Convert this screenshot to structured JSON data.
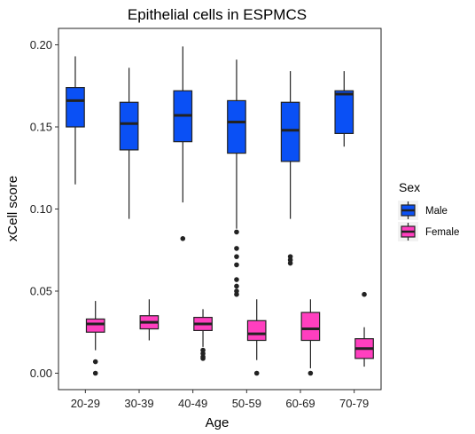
{
  "chart_data": {
    "type": "boxplot",
    "title": "Epithelial cells in ESPMCS",
    "xlabel": "Age",
    "ylabel": "xCell score",
    "categories": [
      "20-29",
      "30-39",
      "40-49",
      "50-59",
      "60-69",
      "70-79"
    ],
    "ylim": [
      -0.01,
      0.21
    ],
    "yticks": [
      0.0,
      0.05,
      0.1,
      0.15,
      0.2
    ],
    "ytick_labels": [
      "0.00",
      "0.05",
      "0.10",
      "0.15",
      "0.20"
    ],
    "grid": false,
    "legend": {
      "title": "Sex",
      "position": "right"
    },
    "series": [
      {
        "name": "Male",
        "color": "#0a50f5",
        "boxes": [
          {
            "min": 0.115,
            "q1": 0.15,
            "median": 0.166,
            "q3": 0.174,
            "max": 0.193,
            "outliers": []
          },
          {
            "min": 0.094,
            "q1": 0.136,
            "median": 0.152,
            "q3": 0.165,
            "max": 0.186,
            "outliers": []
          },
          {
            "min": 0.104,
            "q1": 0.141,
            "median": 0.157,
            "q3": 0.172,
            "max": 0.199,
            "outliers": [
              0.082
            ]
          },
          {
            "min": 0.088,
            "q1": 0.134,
            "median": 0.153,
            "q3": 0.166,
            "max": 0.191,
            "outliers": [
              0.086,
              0.076,
              0.071,
              0.066,
              0.057,
              0.053,
              0.05,
              0.048
            ]
          },
          {
            "min": 0.094,
            "q1": 0.129,
            "median": 0.148,
            "q3": 0.165,
            "max": 0.184,
            "outliers": [
              0.071,
              0.069,
              0.067
            ]
          },
          {
            "min": 0.138,
            "q1": 0.146,
            "median": 0.17,
            "q3": 0.172,
            "max": 0.184,
            "outliers": []
          }
        ]
      },
      {
        "name": "Female",
        "color": "#ff3fbf",
        "boxes": [
          {
            "min": 0.014,
            "q1": 0.025,
            "median": 0.03,
            "q3": 0.033,
            "max": 0.044,
            "outliers": [
              0.007,
              0.0
            ]
          },
          {
            "min": 0.02,
            "q1": 0.027,
            "median": 0.031,
            "q3": 0.035,
            "max": 0.045,
            "outliers": []
          },
          {
            "min": 0.016,
            "q1": 0.026,
            "median": 0.03,
            "q3": 0.034,
            "max": 0.039,
            "outliers": [
              0.014,
              0.012,
              0.01,
              0.009
            ]
          },
          {
            "min": 0.008,
            "q1": 0.02,
            "median": 0.024,
            "q3": 0.032,
            "max": 0.045,
            "outliers": [
              0.0
            ]
          },
          {
            "min": 0.003,
            "q1": 0.02,
            "median": 0.027,
            "q3": 0.037,
            "max": 0.045,
            "outliers": [
              0.0
            ]
          },
          {
            "min": 0.004,
            "q1": 0.009,
            "median": 0.015,
            "q3": 0.021,
            "max": 0.028,
            "outliers": [
              0.048
            ]
          }
        ]
      }
    ]
  }
}
